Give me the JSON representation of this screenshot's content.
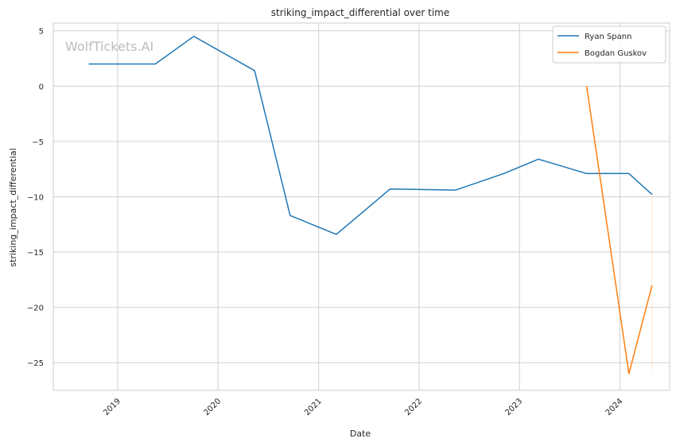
{
  "watermark": "WolfTickets.AI",
  "chart_data": {
    "type": "line",
    "title": "striking_impact_differential over time",
    "xlabel": "Date",
    "ylabel": "striking_impact_differential",
    "x_ticks": [
      "2019",
      "2020",
      "2021",
      "2022",
      "2023",
      "2024"
    ],
    "y_ticks": [
      5,
      0,
      -5,
      -10,
      -15,
      -20,
      -25
    ],
    "xlim": [
      "2018-05-12",
      "2024-06-30"
    ],
    "ylim": [
      -27.5,
      5.7
    ],
    "grid": true,
    "legend_position": "top-right",
    "series": [
      {
        "name": "Ryan Spann",
        "color": "#1f77b4",
        "points": [
          {
            "x": "2018-09-18",
            "y": 2.0
          },
          {
            "x": "2019-05-18",
            "y": 2.0
          },
          {
            "x": "2019-10-05",
            "y": 4.5
          },
          {
            "x": "2020-05-13",
            "y": 1.4
          },
          {
            "x": "2020-09-19",
            "y": -11.7
          },
          {
            "x": "2021-03-06",
            "y": -13.4
          },
          {
            "x": "2021-09-18",
            "y": -9.3
          },
          {
            "x": "2022-05-14",
            "y": -9.4
          },
          {
            "x": "2022-11-05",
            "y": -7.9
          },
          {
            "x": "2023-03-11",
            "y": -6.6
          },
          {
            "x": "2023-09-02",
            "y": -7.9
          },
          {
            "x": "2024-02-03",
            "y": -7.9
          },
          {
            "x": "2024-04-27",
            "y": -9.8
          }
        ]
      },
      {
        "name": "Bogdan Guskov",
        "color": "#ff7f0e",
        "points": [
          {
            "x": "2023-09-02",
            "y": 0.0
          },
          {
            "x": "2024-02-03",
            "y": -26.0
          },
          {
            "x": "2024-04-27",
            "y": -18.0
          }
        ]
      }
    ]
  }
}
